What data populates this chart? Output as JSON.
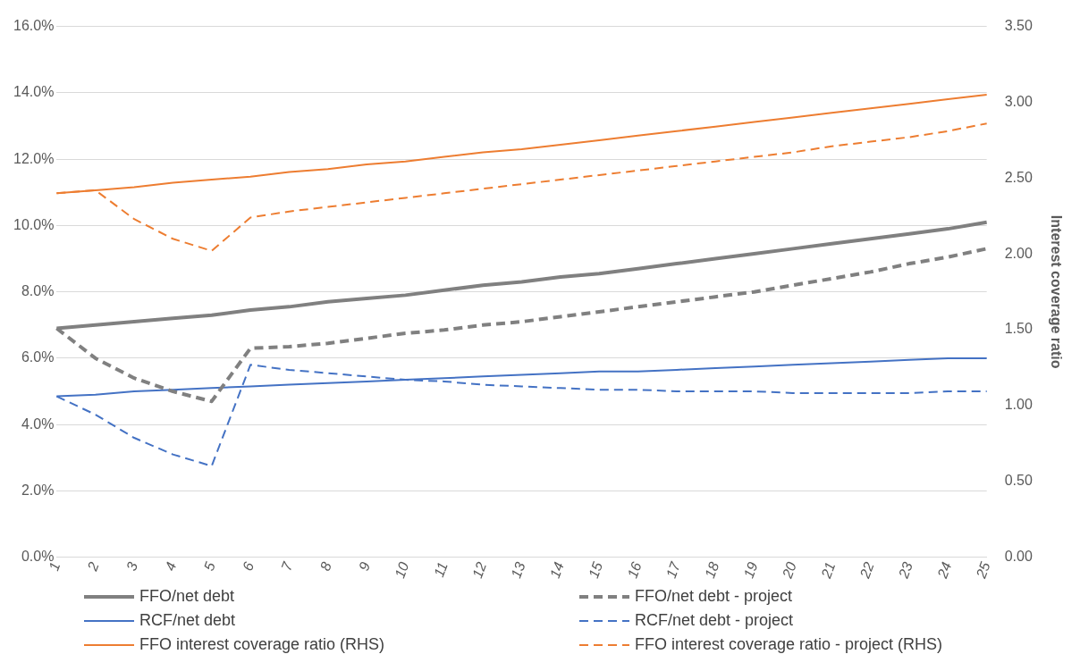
{
  "chart_data": {
    "type": "line",
    "y2label": "Interest coverage ratio",
    "categories": [
      "1",
      "2",
      "3",
      "4",
      "5",
      "6",
      "7",
      "8",
      "9",
      "10",
      "11",
      "12",
      "13",
      "14",
      "15",
      "16",
      "17",
      "18",
      "19",
      "20",
      "21",
      "22",
      "23",
      "24",
      "25"
    ],
    "series": [
      {
        "name": "FFO/net debt",
        "color": "#808080",
        "line_style": "solid",
        "values": [
          6.9,
          7.0,
          7.1,
          7.2,
          7.3,
          7.45,
          7.55,
          7.7,
          7.8,
          7.9,
          8.05,
          8.2,
          8.3,
          8.45,
          8.55,
          8.7,
          8.85,
          9.0,
          9.15,
          9.3,
          9.45,
          9.6,
          9.75,
          9.9,
          10.1
        ]
      },
      {
        "name": "FFO/net debt - project",
        "color": "#808080",
        "line_style": "dashed",
        "values": [
          6.9,
          6.0,
          5.4,
          5.0,
          4.7,
          6.3,
          6.35,
          6.45,
          6.6,
          6.75,
          6.85,
          7.0,
          7.1,
          7.25,
          7.4,
          7.55,
          7.7,
          7.85,
          8.0,
          8.2,
          8.4,
          8.6,
          8.85,
          9.05,
          9.3
        ]
      },
      {
        "name": "RCF/net debt",
        "color": "#4472c4",
        "line_style": "solid",
        "values": [
          4.85,
          4.9,
          5.0,
          5.05,
          5.1,
          5.15,
          5.2,
          5.25,
          5.3,
          5.35,
          5.4,
          5.45,
          5.5,
          5.55,
          5.6,
          5.6,
          5.65,
          5.7,
          5.75,
          5.8,
          5.85,
          5.9,
          5.95,
          6.0,
          6.0
        ]
      },
      {
        "name": "RCF/net debt - project",
        "color": "#4472c4",
        "line_style": "dashed",
        "values": [
          4.85,
          4.3,
          3.6,
          3.1,
          2.75,
          5.8,
          5.65,
          5.55,
          5.45,
          5.35,
          5.3,
          5.2,
          5.15,
          5.1,
          5.05,
          5.05,
          5.0,
          5.0,
          5.0,
          4.95,
          4.95,
          4.95,
          4.95,
          5.0,
          5.0
        ]
      },
      {
        "name": "FFO interest coverage ratio (RHS)",
        "color": "#ed7d31",
        "line_style": "solid",
        "axis": "y2",
        "values": [
          2.4,
          2.42,
          2.44,
          2.47,
          2.49,
          2.51,
          2.54,
          2.56,
          2.59,
          2.61,
          2.64,
          2.67,
          2.69,
          2.72,
          2.75,
          2.78,
          2.81,
          2.84,
          2.87,
          2.9,
          2.93,
          2.96,
          2.99,
          3.02,
          3.05
        ]
      },
      {
        "name": "FFO interest coverage ratio - project (RHS)",
        "color": "#ed7d31",
        "line_style": "dashed",
        "axis": "y2",
        "values": [
          2.4,
          2.42,
          2.23,
          2.1,
          2.02,
          2.24,
          2.28,
          2.31,
          2.34,
          2.37,
          2.4,
          2.43,
          2.46,
          2.49,
          2.52,
          2.55,
          2.58,
          2.61,
          2.64,
          2.67,
          2.71,
          2.74,
          2.77,
          2.81,
          2.86
        ]
      }
    ],
    "ylim": [
      0,
      16
    ],
    "yticks": [
      {
        "value": 0,
        "label": "0.0%"
      },
      {
        "value": 2,
        "label": "2.0%"
      },
      {
        "value": 4,
        "label": "4.0%"
      },
      {
        "value": 6,
        "label": "6.0%"
      },
      {
        "value": 8,
        "label": "8.0%"
      },
      {
        "value": 10,
        "label": "10.0%"
      },
      {
        "value": 12,
        "label": "12.0%"
      },
      {
        "value": 14,
        "label": "14.0%"
      },
      {
        "value": 16,
        "label": "16.0%"
      }
    ],
    "y2lim": [
      0,
      3.5
    ],
    "y2ticks": [
      {
        "value": 0,
        "label": "0.00"
      },
      {
        "value": 0.5,
        "label": "0.50"
      },
      {
        "value": 1,
        "label": "1.00"
      },
      {
        "value": 1.5,
        "label": "1.50"
      },
      {
        "value": 2,
        "label": "2.00"
      },
      {
        "value": 2.5,
        "label": "2.50"
      },
      {
        "value": 3,
        "label": "3.00"
      },
      {
        "value": 3.5,
        "label": "3.50"
      }
    ],
    "grid": "y",
    "legend": "bottom",
    "marker": "none"
  }
}
